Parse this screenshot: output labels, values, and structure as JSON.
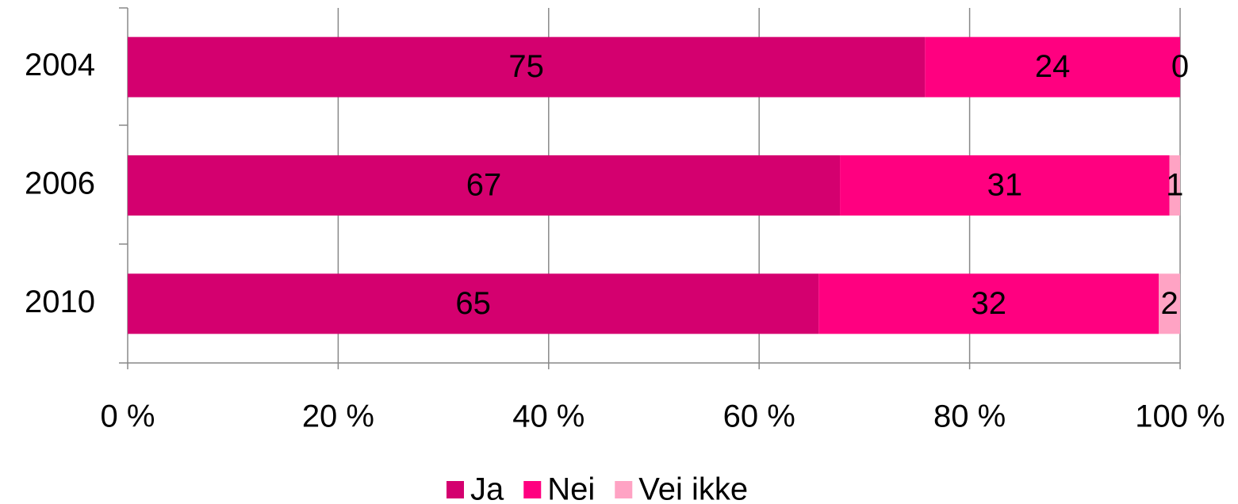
{
  "chart_data": {
    "type": "bar",
    "orientation": "horizontal",
    "stacked": "percent",
    "categories": [
      "2004",
      "2006",
      "2010"
    ],
    "series": [
      {
        "name": "Ja",
        "color": "#d4006f",
        "values": [
          75,
          67,
          65
        ]
      },
      {
        "name": "Nei",
        "color": "#ff0080",
        "values": [
          24,
          31,
          32
        ]
      },
      {
        "name": "Vei ikke",
        "color": "#ffa3c4",
        "values": [
          0,
          1,
          2
        ]
      }
    ],
    "xlim": [
      0,
      100
    ],
    "xticks": [
      {
        "value": 0,
        "label": "0 %"
      },
      {
        "value": 20,
        "label": "20 %"
      },
      {
        "value": 40,
        "label": "40 %"
      },
      {
        "value": 60,
        "label": "60 %"
      },
      {
        "value": 80,
        "label": "80 %"
      },
      {
        "value": 100,
        "label": "100 %"
      }
    ],
    "grid": true,
    "legend": "bottom"
  }
}
